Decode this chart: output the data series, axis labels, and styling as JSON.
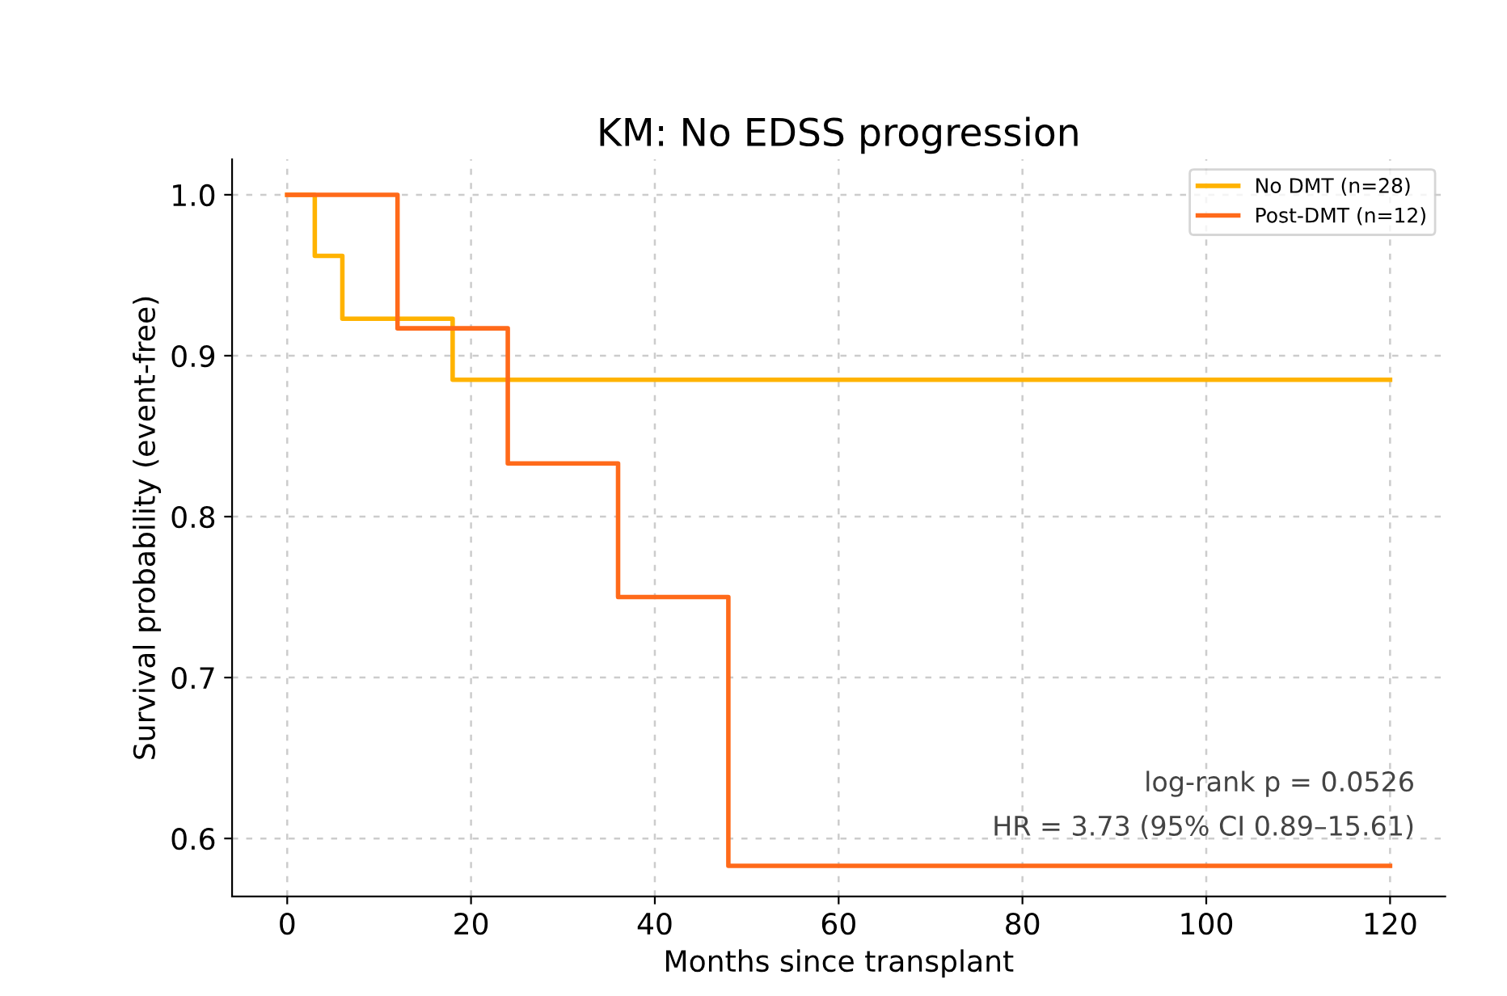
{
  "chart_data": {
    "type": "step",
    "title": "KM: No EDSS progression",
    "xlabel": "Months since transplant",
    "ylabel": "Survival probability (event-free)",
    "series": [
      {
        "name": "No DMT (n=28)",
        "color": "#ffb300",
        "x": [
          0,
          3,
          6,
          18,
          120
        ],
        "values": [
          1.0,
          0.962,
          0.923,
          0.885,
          0.885
        ]
      },
      {
        "name": "Post-DMT (n=12)",
        "color": "#ff6a1a",
        "x": [
          0,
          12,
          24,
          36,
          48,
          120
        ],
        "values": [
          1.0,
          0.917,
          0.833,
          0.75,
          0.583,
          0.583
        ]
      }
    ],
    "xlim": [
      -6,
      126
    ],
    "ylim": [
      0.564,
      1.022
    ],
    "xticks": [
      0,
      20,
      40,
      60,
      80,
      100,
      120
    ],
    "yticks": [
      0.6,
      0.7,
      0.8,
      0.9,
      {
        "value": 1.0,
        "label": "1.0"
      }
    ],
    "grid": true,
    "legend": "top right",
    "line_style": "solid",
    "marker": "none",
    "annotations": [
      "log-rank p = 0.0526",
      "HR = 3.73 (95% CI 0.89–15.61)"
    ]
  }
}
